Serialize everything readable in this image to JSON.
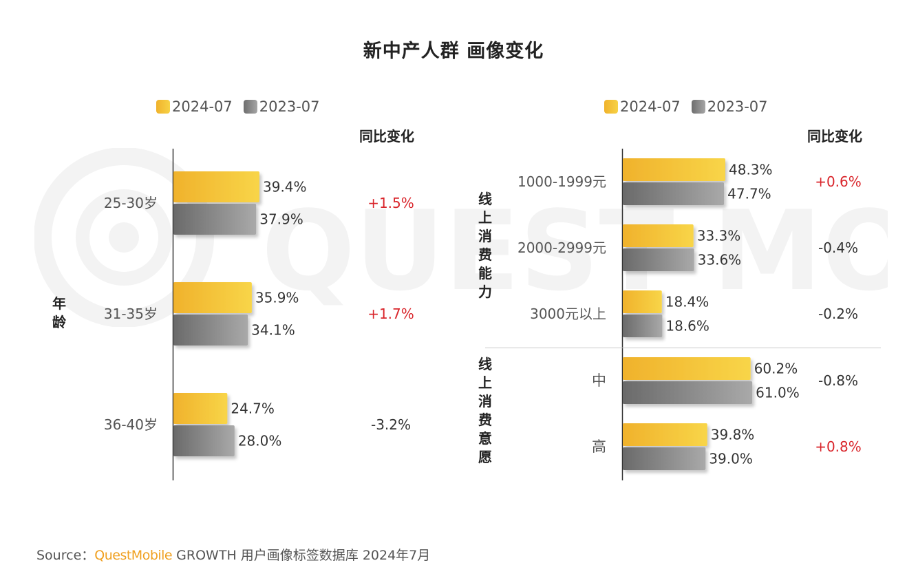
{
  "title": "新中产人群 画像变化",
  "legend": {
    "series1": "2024-07",
    "series2": "2023-07"
  },
  "change_header": "同比变化",
  "watermark": "QUEST MOBILE",
  "source": {
    "prefix": "Source：",
    "brand": "QuestMobile",
    "suffix": " GROWTH 用户画像标签数据库 2024年7月"
  },
  "colors": {
    "series1": "#f5c33b",
    "series2": "#8a8a8a",
    "positive": "#d9252b",
    "neutral": "#333333"
  },
  "chart_data": [
    {
      "type": "bar",
      "orientation": "horizontal",
      "group_label": "年龄",
      "categories": [
        "25-30岁",
        "31-35岁",
        "36-40岁"
      ],
      "series": [
        {
          "name": "2024-07",
          "values": [
            39.4,
            35.9,
            24.7
          ]
        },
        {
          "name": "2023-07",
          "values": [
            37.9,
            34.1,
            28.0
          ]
        }
      ],
      "labels_2024": [
        "39.4%",
        "35.9%",
        "24.7%"
      ],
      "labels_2023": [
        "37.9%",
        "34.1%",
        "28.0%"
      ],
      "yoy_change": [
        "+1.5%",
        "+1.7%",
        "-3.2%"
      ]
    },
    {
      "type": "bar",
      "orientation": "horizontal",
      "groups": [
        {
          "group_label": "线上消费能力",
          "categories": [
            "1000-1999元",
            "2000-2999元",
            "3000元以上"
          ],
          "series": [
            {
              "name": "2024-07",
              "values": [
                48.3,
                33.3,
                18.4
              ]
            },
            {
              "name": "2023-07",
              "values": [
                47.7,
                33.6,
                18.6
              ]
            }
          ],
          "labels_2024": [
            "48.3%",
            "33.3%",
            "18.4%"
          ],
          "labels_2023": [
            "47.7%",
            "33.6%",
            "18.6%"
          ],
          "yoy_change": [
            "+0.6%",
            "-0.4%",
            "-0.2%"
          ]
        },
        {
          "group_label": "线上消费意愿",
          "categories": [
            "中",
            "高"
          ],
          "series": [
            {
              "name": "2024-07",
              "values": [
                60.2,
                39.8
              ]
            },
            {
              "name": "2023-07",
              "values": [
                61.0,
                39.0
              ]
            }
          ],
          "labels_2024": [
            "60.2%",
            "39.8%"
          ],
          "labels_2023": [
            "61.0%",
            "39.0%"
          ],
          "yoy_change": [
            "-0.8%",
            "+0.8%"
          ]
        }
      ]
    }
  ]
}
